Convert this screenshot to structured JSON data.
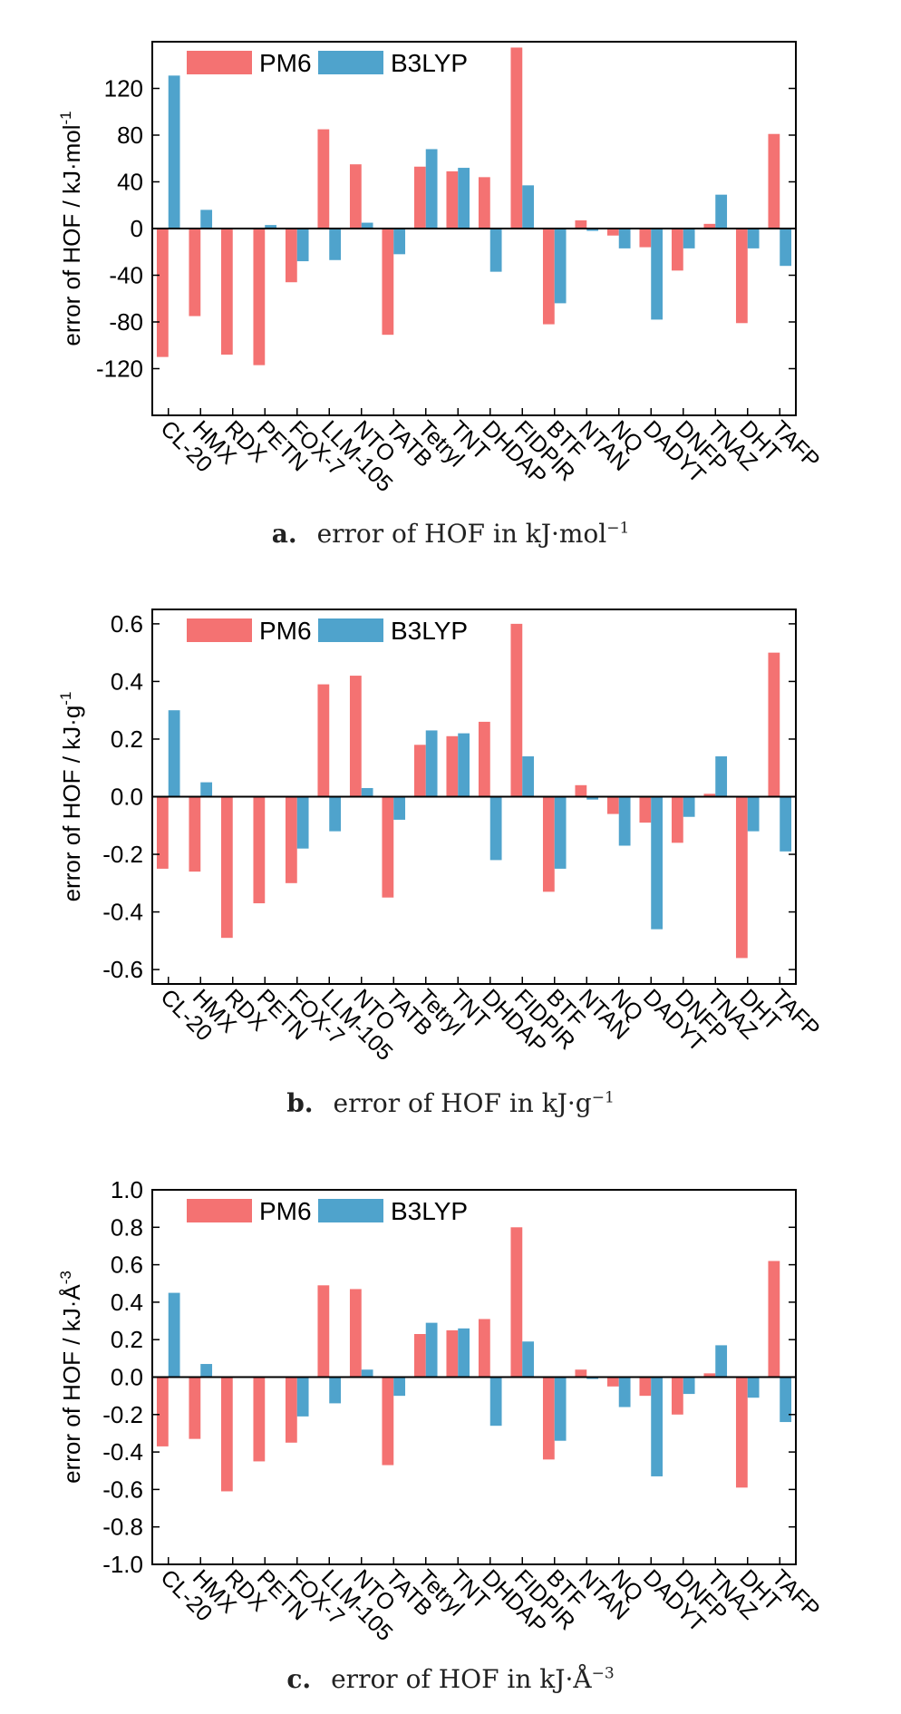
{
  "categories": [
    "CL-20",
    "HMX",
    "RDX",
    "PETN",
    "FOX-7",
    "LLM-105",
    "NTO",
    "TATB",
    "Tetryl",
    "TNT",
    "DHDAP",
    "FIDPIR",
    "BTF",
    "NTAN",
    "NQ",
    "DADYT",
    "DNFP",
    "TNAZ",
    "DHT",
    "TAFP"
  ],
  "series_colors": {
    "PM6": "#f47272",
    "B3LYP": "#4fa3cc"
  },
  "chart_data": [
    {
      "type": "bar",
      "title": "",
      "xlabel": "",
      "ylabel": "error of HOF / kJ·mol",
      "ylabel_sup": "-1",
      "ylim": [
        -160,
        160
      ],
      "yticks": [
        -120,
        -80,
        -40,
        0,
        40,
        80,
        120
      ],
      "ytick_labels": [
        "-120",
        "-80",
        "-40",
        "0",
        "40",
        "80",
        "120"
      ],
      "legend": "top-left",
      "grid": false,
      "series": [
        {
          "name": "PM6",
          "values": [
            -110,
            -75,
            -108,
            -117,
            -46,
            85,
            55,
            -91,
            53,
            49,
            44,
            155,
            -82,
            7,
            -6,
            -16,
            -36,
            4,
            -81,
            81
          ]
        },
        {
          "name": "B3LYP",
          "values": [
            131,
            16,
            0,
            3,
            -28,
            -27,
            5,
            -22,
            68,
            52,
            -37,
            37,
            -64,
            -2,
            -17,
            -78,
            -17,
            29,
            -17,
            -32
          ]
        }
      ],
      "caption_letter": "a.",
      "caption_text": "error of HOF in kJ·mol",
      "caption_sup": "−1"
    },
    {
      "type": "bar",
      "title": "",
      "xlabel": "",
      "ylabel": "error of HOF / kJ·g",
      "ylabel_sup": "-1",
      "ylim": [
        -0.65,
        0.65
      ],
      "yticks": [
        -0.6,
        -0.4,
        -0.2,
        0,
        0.2,
        0.4,
        0.6
      ],
      "ytick_labels": [
        "-0.6",
        "-0.4",
        "-0.2",
        "0.0",
        "0.2",
        "0.4",
        "0.6"
      ],
      "legend": "top-left",
      "grid": false,
      "series": [
        {
          "name": "PM6",
          "values": [
            -0.25,
            -0.26,
            -0.49,
            -0.37,
            -0.3,
            0.39,
            0.42,
            -0.35,
            0.18,
            0.21,
            0.26,
            0.6,
            -0.33,
            0.04,
            -0.06,
            -0.09,
            -0.16,
            0.01,
            -0.56,
            0.5
          ]
        },
        {
          "name": "B3LYP",
          "values": [
            0.3,
            0.05,
            0,
            0,
            -0.18,
            -0.12,
            0.03,
            -0.08,
            0.23,
            0.22,
            -0.22,
            0.14,
            -0.25,
            -0.01,
            -0.17,
            -0.46,
            -0.07,
            0.14,
            -0.12,
            -0.19
          ]
        }
      ],
      "caption_letter": "b.",
      "caption_text": "error of HOF in kJ·g",
      "caption_sup": "−1"
    },
    {
      "type": "bar",
      "title": "",
      "xlabel": "",
      "ylabel": "error of HOF / kJ·Å",
      "ylabel_sup": "-3",
      "ylim": [
        -1.0,
        1.0
      ],
      "yticks": [
        -1.0,
        -0.8,
        -0.6,
        -0.4,
        -0.2,
        0,
        0.2,
        0.4,
        0.6,
        0.8,
        1.0
      ],
      "ytick_labels": [
        "-1.0",
        "-0.8",
        "-0.6",
        "-0.4",
        "-0.2",
        "0.0",
        "0.2",
        "0.4",
        "0.6",
        "0.8",
        "1.0"
      ],
      "legend": "top-left",
      "grid": false,
      "series": [
        {
          "name": "PM6",
          "values": [
            -0.37,
            -0.33,
            -0.61,
            -0.45,
            -0.35,
            0.49,
            0.47,
            -0.47,
            0.23,
            0.25,
            0.31,
            0.8,
            -0.44,
            0.04,
            -0.05,
            -0.1,
            -0.2,
            0.02,
            -0.59,
            0.62
          ]
        },
        {
          "name": "B3LYP",
          "values": [
            0.45,
            0.07,
            0,
            0,
            -0.21,
            -0.14,
            0.04,
            -0.1,
            0.29,
            0.26,
            -0.26,
            0.19,
            -0.34,
            -0.01,
            -0.16,
            -0.53,
            -0.09,
            0.17,
            -0.11,
            -0.24
          ]
        }
      ],
      "caption_letter": "c.",
      "caption_text": "error of HOF in kJ·Å",
      "caption_sup": "−3"
    }
  ]
}
